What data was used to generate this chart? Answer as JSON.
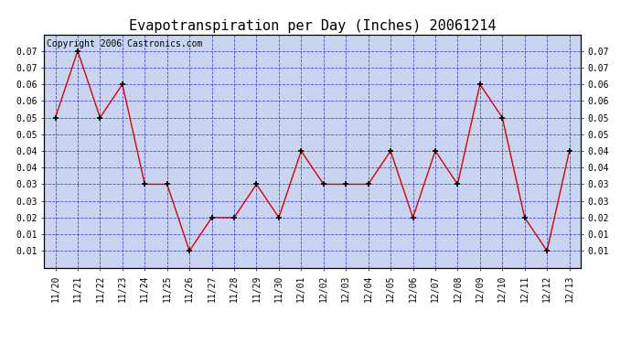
{
  "title": "Evapotranspiration per Day (Inches) 20061214",
  "copyright": "Copyright 2006 Castronics.com",
  "x_labels": [
    "11/20",
    "11/21",
    "11/22",
    "11/23",
    "11/24",
    "11/25",
    "11/26",
    "11/27",
    "11/28",
    "11/29",
    "11/30",
    "12/01",
    "12/02",
    "12/03",
    "12/04",
    "12/05",
    "12/06",
    "12/07",
    "12/08",
    "12/09",
    "12/10",
    "12/11",
    "12/12",
    "12/13"
  ],
  "y_values": [
    0.05,
    0.07,
    0.05,
    0.06,
    0.03,
    0.03,
    0.01,
    0.02,
    0.02,
    0.03,
    0.02,
    0.04,
    0.03,
    0.03,
    0.03,
    0.04,
    0.02,
    0.04,
    0.03,
    0.06,
    0.05,
    0.02,
    0.01,
    0.04
  ],
  "line_color": "#dd0000",
  "marker": "+",
  "marker_color": "#000000",
  "bg_color": "#c8d4f0",
  "grid_color": "#3333cc",
  "grid_style": "--",
  "title_fontsize": 11,
  "copyright_fontsize": 7,
  "tick_fontsize": 7,
  "right_tick_positions": [
    0.07,
    0.065,
    0.06,
    0.055,
    0.05,
    0.045,
    0.04,
    0.035,
    0.03,
    0.025,
    0.02,
    0.015,
    0.01
  ],
  "right_tick_labels": [
    "0.07",
    "0.07",
    "0.06",
    "0.06",
    "0.05",
    "0.05",
    "0.04",
    "0.04",
    "0.03",
    "0.03",
    "0.02",
    "0.01",
    "0.01"
  ],
  "left_tick_positions": [
    0.07,
    0.065,
    0.06,
    0.055,
    0.05,
    0.045,
    0.04,
    0.035,
    0.03,
    0.025,
    0.02,
    0.015,
    0.01
  ],
  "left_tick_labels": [
    "0.07",
    "0.07",
    "0.06",
    "0.06",
    "0.05",
    "0.05",
    "0.04",
    "0.04",
    "0.03",
    "0.03",
    "0.02",
    "0.01",
    "0.01"
  ],
  "ylim_low": 0.005,
  "ylim_high": 0.075
}
